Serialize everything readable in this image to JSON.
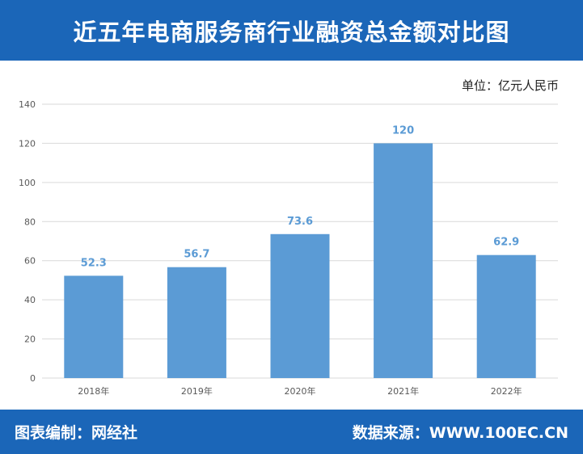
{
  "header": {
    "title": "近五年电商服务商行业融资总金额对比图"
  },
  "unit_label": "单位：亿元人民币",
  "footer": {
    "left": "图表编制：网经社",
    "right": "数据来源：WWW.100EC.CN"
  },
  "colors": {
    "header_bg": "#1b66b8",
    "bar": "#5b9bd5",
    "data_label": "#5b9bd5"
  },
  "chart_data": {
    "type": "bar",
    "categories": [
      "2018年",
      "2019年",
      "2020年",
      "2021年",
      "2022年"
    ],
    "values": [
      52.3,
      56.7,
      73.6,
      120,
      62.9
    ],
    "value_labels": [
      "52.3",
      "56.7",
      "73.6",
      "120",
      "62.9"
    ],
    "yticks": [
      "0",
      "20",
      "40",
      "60",
      "80",
      "100",
      "120",
      "140"
    ],
    "ylim": [
      0,
      140
    ],
    "grid": true
  }
}
